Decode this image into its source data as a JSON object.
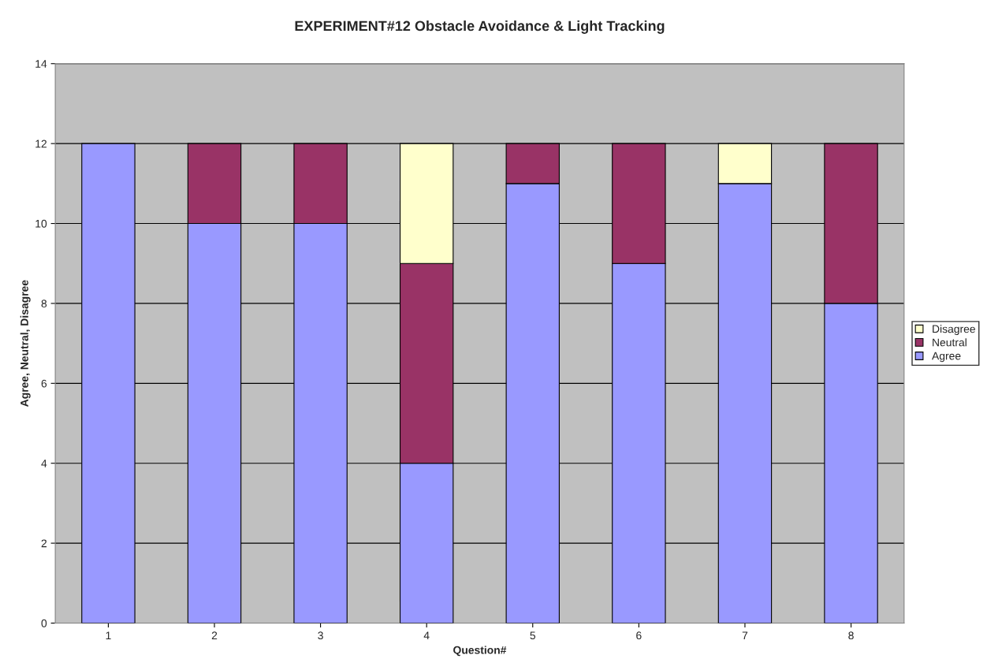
{
  "chart_data": {
    "type": "bar",
    "title": "EXPERIMENT#12 Obstacle Avoidance & Light Tracking",
    "xlabel": "Question#",
    "ylabel": "Agree, Neutral, Disagree",
    "categories": [
      "1",
      "2",
      "3",
      "4",
      "5",
      "6",
      "7",
      "8"
    ],
    "stacked": true,
    "series": [
      {
        "name": "Agree",
        "color": "#9999ff",
        "values": [
          12,
          10,
          10,
          4,
          11,
          9,
          11,
          8
        ]
      },
      {
        "name": "Neutral",
        "color": "#993366",
        "values": [
          null,
          2,
          2,
          5,
          1,
          3,
          null,
          4
        ]
      },
      {
        "name": "Disagree",
        "color": "#ffffcc",
        "values": [
          null,
          null,
          null,
          3,
          null,
          null,
          1,
          null
        ]
      }
    ],
    "ylim": [
      0,
      14
    ],
    "yticks": [
      0,
      2,
      4,
      6,
      8,
      10,
      12,
      14
    ],
    "grid": "y",
    "legend": "right"
  }
}
